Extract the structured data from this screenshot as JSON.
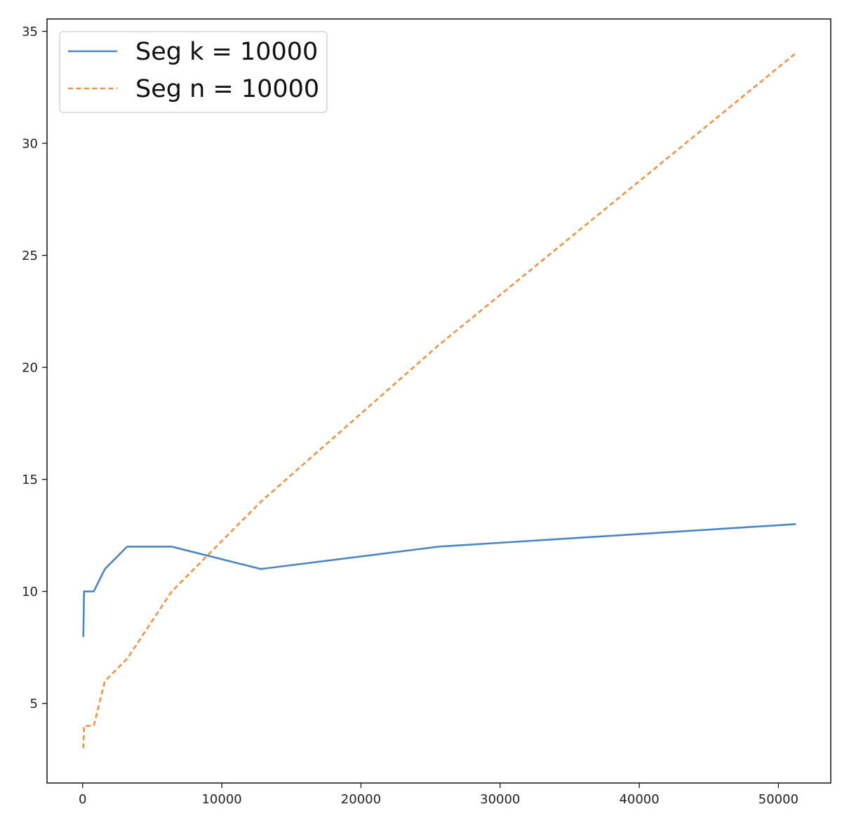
{
  "chart_data": {
    "type": "line",
    "title": "",
    "xlabel": "",
    "ylabel": "",
    "xlim": [
      -2560,
      53760
    ],
    "ylim": [
      1.45,
      35.55
    ],
    "xticks": [
      0,
      10000,
      20000,
      30000,
      40000,
      50000
    ],
    "xtick_labels": [
      "0",
      "10000",
      "20000",
      "30000",
      "40000",
      "50000"
    ],
    "yticks": [
      5,
      10,
      15,
      20,
      25,
      30,
      35
    ],
    "ytick_labels": [
      "5",
      "10",
      "15",
      "20",
      "25",
      "30",
      "35"
    ],
    "grid": false,
    "legend_position": "top-left",
    "series": [
      {
        "name": "Seg k = 10000",
        "color": "#4a86c5",
        "line_style": "solid",
        "x": [
          50,
          100,
          200,
          400,
          800,
          1600,
          3200,
          6400,
          12800,
          25600,
          51200
        ],
        "y": [
          8,
          10,
          10,
          10,
          10,
          11,
          12,
          12,
          11,
          12,
          13
        ]
      },
      {
        "name": "Seg n = 10000",
        "color": "#f39143",
        "line_style": "dashed",
        "x": [
          50,
          100,
          200,
          400,
          800,
          1600,
          3200,
          6400,
          12800,
          25600,
          51200
        ],
        "y": [
          3,
          4,
          4,
          4,
          4,
          6,
          7,
          10,
          14,
          21,
          34
        ]
      }
    ]
  }
}
